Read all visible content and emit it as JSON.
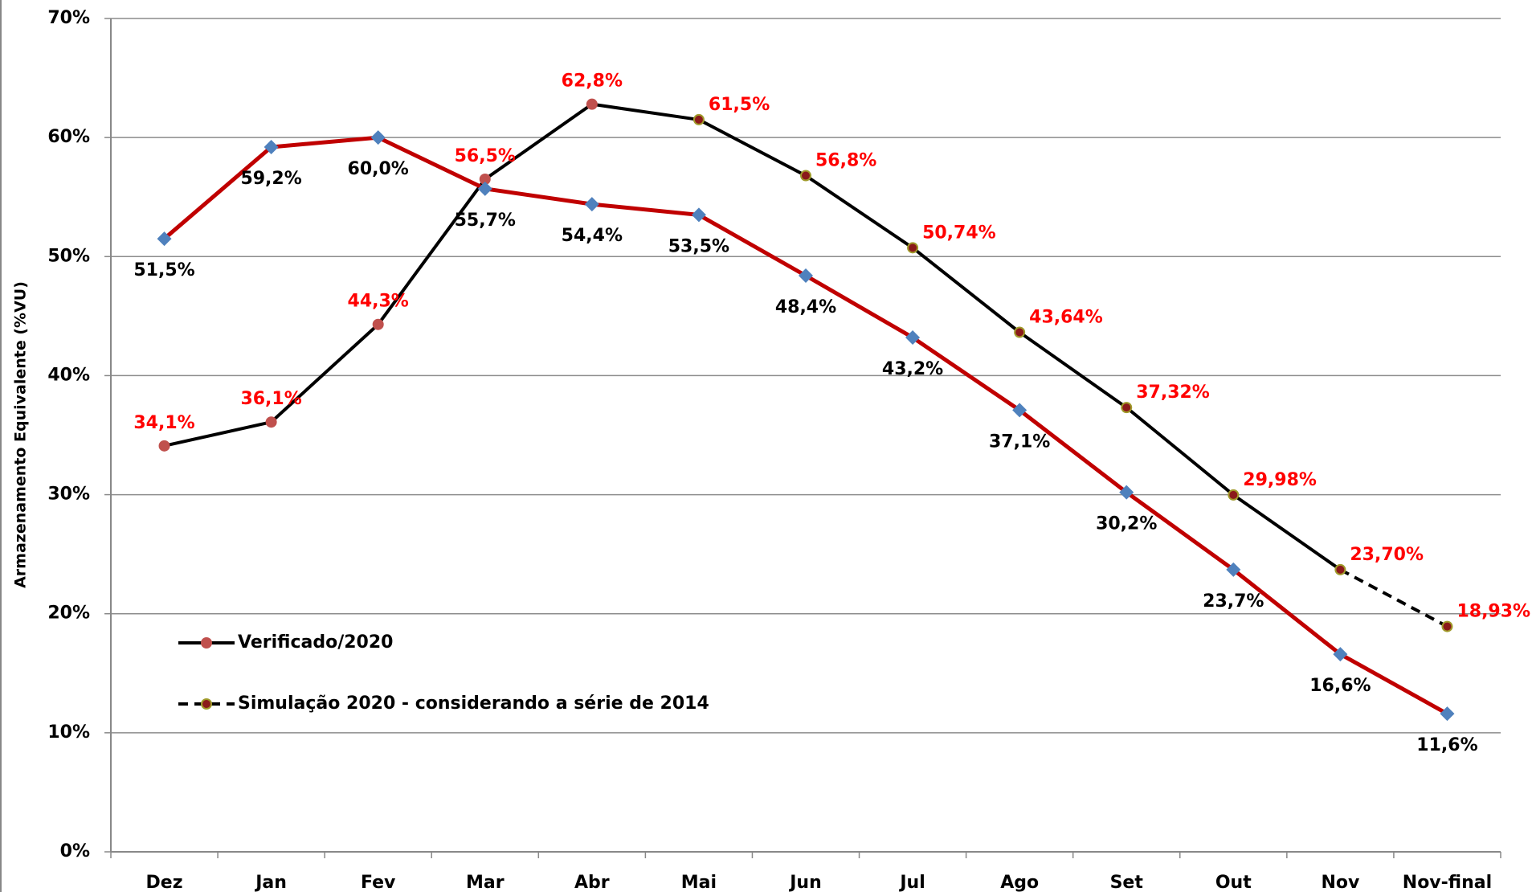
{
  "chart_data": {
    "type": "line",
    "y_label": "Armazenamento Equivalente (%VU)",
    "categories": [
      "Dez",
      "Jan",
      "Fev",
      "Mar",
      "Abr",
      "Mai",
      "Jun",
      "Jul",
      "Ago",
      "Set",
      "Out",
      "Nov",
      "Nov-final"
    ],
    "ylim": [
      0,
      70
    ],
    "yticks": [
      {
        "value": 0,
        "label": "0%"
      },
      {
        "value": 10,
        "label": "10%"
      },
      {
        "value": 20,
        "label": "20%"
      },
      {
        "value": 30,
        "label": "30%"
      },
      {
        "value": 40,
        "label": "40%"
      },
      {
        "value": 50,
        "label": "50%"
      },
      {
        "value": 60,
        "label": "60%"
      },
      {
        "value": 70,
        "label": "70%"
      }
    ],
    "grid": true,
    "series": [
      {
        "name": "Verificado/2020",
        "color": "#000000",
        "marker": "circle",
        "marker_color": "#c0504d",
        "label_color": "#ff0000",
        "label_pos": "above",
        "legend": true,
        "values": [
          34.1,
          36.1,
          44.3,
          56.5,
          62.8,
          null,
          null,
          null,
          null,
          null,
          null,
          null,
          null
        ],
        "value_labels": [
          "34,1%",
          "36,1%",
          "44,3%",
          "56,5%",
          "62,8%",
          null,
          null,
          null,
          null,
          null,
          null,
          null,
          null
        ]
      },
      {
        "name": "Simulação 2020 - considerando a série de 2014",
        "color": "#000000",
        "marker": "circle",
        "marker_color": "#8b1a1a",
        "marker_stroke": "#a09a2a",
        "label_color": "#ff0000",
        "label_pos": "right",
        "legend": true,
        "dashed_last": true,
        "values": [
          null,
          null,
          null,
          null,
          null,
          61.5,
          56.8,
          50.74,
          43.64,
          37.32,
          29.98,
          23.7,
          18.93
        ],
        "value_labels": [
          null,
          null,
          null,
          null,
          null,
          "61,5%",
          "56,8%",
          "50,74%",
          "43,64%",
          "37,32%",
          "29,98%",
          "23,70%",
          "18,93%"
        ]
      },
      {
        "color": "#c00000",
        "marker": "diamond",
        "marker_color": "#4f81bd",
        "label_color": "#000000",
        "label_pos": "below",
        "legend": false,
        "values": [
          51.5,
          59.2,
          60.0,
          55.7,
          54.4,
          53.5,
          48.4,
          43.2,
          37.1,
          30.2,
          23.7,
          16.6,
          11.6
        ],
        "value_labels": [
          "51,5%",
          "59,2%",
          "60,0%",
          "55,7%",
          "54,4%",
          "53,5%",
          "48,4%",
          "43,2%",
          "37,1%",
          "30,2%",
          "23,7%",
          "16,6%",
          "11,6%"
        ]
      }
    ]
  }
}
